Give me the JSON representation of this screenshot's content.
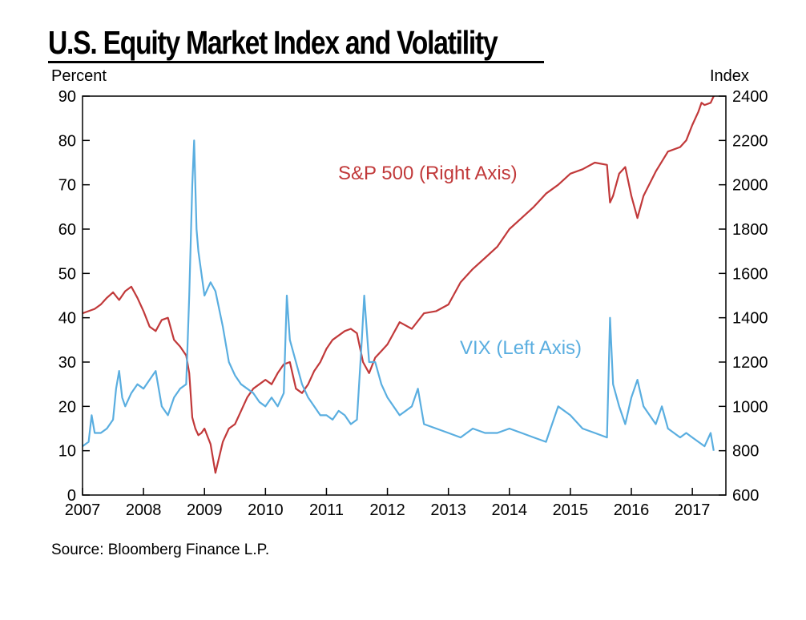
{
  "title": "U.S. Equity Market Index and Volatility",
  "left_unit": "Percent",
  "right_unit": "Index",
  "source": "Source: Bloomberg Finance L.P.",
  "colors": {
    "sp500": "#c1393a",
    "vix": "#5aaee0"
  },
  "chart_data": {
    "type": "line",
    "title": "U.S. Equity Market Index and Volatility",
    "x_tick_labels": [
      "2007",
      "2008",
      "2009",
      "2010",
      "2011",
      "2012",
      "2013",
      "2014",
      "2015",
      "2016",
      "2017"
    ],
    "xlim": [
      2007,
      2017.55
    ],
    "y_left": {
      "label": "Percent",
      "range": [
        0,
        90
      ],
      "ticks": [
        0,
        10,
        20,
        30,
        40,
        50,
        60,
        70,
        80,
        90
      ]
    },
    "y_right": {
      "label": "Index",
      "range": [
        600,
        2400
      ],
      "ticks": [
        600,
        800,
        1000,
        1200,
        1400,
        1600,
        1800,
        2000,
        2200,
        2400
      ]
    },
    "annotations": [
      "S&P 500 (Right Axis)",
      "VIX (Left Axis)"
    ],
    "legend": "none",
    "grid": false,
    "series": [
      {
        "name": "S&P 500 (Right Axis)",
        "axis": "right",
        "x": [
          2007.0,
          2007.1,
          2007.2,
          2007.3,
          2007.4,
          2007.5,
          2007.6,
          2007.7,
          2007.8,
          2007.9,
          2008.0,
          2008.1,
          2008.2,
          2008.3,
          2008.4,
          2008.5,
          2008.6,
          2008.7,
          2008.75,
          2008.8,
          2008.85,
          2008.9,
          2008.95,
          2009.0,
          2009.1,
          2009.18,
          2009.3,
          2009.4,
          2009.5,
          2009.6,
          2009.7,
          2009.8,
          2009.9,
          2010.0,
          2010.1,
          2010.2,
          2010.3,
          2010.4,
          2010.5,
          2010.6,
          2010.7,
          2010.8,
          2010.9,
          2011.0,
          2011.1,
          2011.2,
          2011.3,
          2011.4,
          2011.5,
          2011.6,
          2011.7,
          2011.8,
          2011.9,
          2012.0,
          2012.2,
          2012.4,
          2012.6,
          2012.8,
          2013.0,
          2013.2,
          2013.4,
          2013.6,
          2013.8,
          2014.0,
          2014.2,
          2014.4,
          2014.6,
          2014.8,
          2015.0,
          2015.2,
          2015.4,
          2015.6,
          2015.65,
          2015.7,
          2015.8,
          2015.9,
          2016.0,
          2016.1,
          2016.2,
          2016.4,
          2016.6,
          2016.8,
          2016.9,
          2017.0,
          2017.1,
          2017.15,
          2017.2,
          2017.3,
          2017.35
        ],
        "values": [
          1420,
          1430,
          1440,
          1460,
          1490,
          1515,
          1480,
          1520,
          1540,
          1490,
          1430,
          1360,
          1340,
          1390,
          1400,
          1300,
          1270,
          1230,
          1150,
          950,
          900,
          870,
          880,
          900,
          830,
          700,
          840,
          900,
          920,
          980,
          1040,
          1080,
          1100,
          1120,
          1100,
          1150,
          1190,
          1200,
          1080,
          1060,
          1100,
          1160,
          1200,
          1260,
          1300,
          1320,
          1340,
          1350,
          1330,
          1200,
          1150,
          1220,
          1250,
          1280,
          1380,
          1350,
          1420,
          1430,
          1460,
          1560,
          1620,
          1670,
          1720,
          1800,
          1850,
          1900,
          1960,
          2000,
          2050,
          2070,
          2100,
          2090,
          1920,
          1950,
          2050,
          2080,
          1950,
          1850,
          1950,
          2060,
          2150,
          2170,
          2200,
          2270,
          2330,
          2370,
          2360,
          2370,
          2400
        ]
      },
      {
        "name": "VIX (Left Axis)",
        "axis": "left",
        "x": [
          2007.0,
          2007.1,
          2007.15,
          2007.2,
          2007.3,
          2007.4,
          2007.5,
          2007.55,
          2007.6,
          2007.65,
          2007.7,
          2007.8,
          2007.9,
          2008.0,
          2008.1,
          2008.2,
          2008.3,
          2008.4,
          2008.5,
          2008.6,
          2008.7,
          2008.75,
          2008.8,
          2008.83,
          2008.87,
          2008.9,
          2009.0,
          2009.1,
          2009.18,
          2009.3,
          2009.4,
          2009.5,
          2009.6,
          2009.7,
          2009.8,
          2009.9,
          2010.0,
          2010.1,
          2010.2,
          2010.3,
          2010.35,
          2010.4,
          2010.5,
          2010.6,
          2010.7,
          2010.8,
          2010.9,
          2011.0,
          2011.1,
          2011.2,
          2011.3,
          2011.4,
          2011.5,
          2011.58,
          2011.62,
          2011.7,
          2011.8,
          2011.9,
          2012.0,
          2012.2,
          2012.4,
          2012.5,
          2012.6,
          2012.8,
          2013.0,
          2013.2,
          2013.4,
          2013.6,
          2013.8,
          2014.0,
          2014.2,
          2014.4,
          2014.6,
          2014.8,
          2015.0,
          2015.2,
          2015.4,
          2015.6,
          2015.65,
          2015.7,
          2015.8,
          2015.9,
          2016.0,
          2016.1,
          2016.2,
          2016.4,
          2016.5,
          2016.6,
          2016.8,
          2016.9,
          2017.0,
          2017.2,
          2017.3,
          2017.35
        ],
        "values": [
          11,
          12,
          18,
          14,
          14,
          15,
          17,
          24,
          28,
          22,
          20,
          23,
          25,
          24,
          26,
          28,
          20,
          18,
          22,
          24,
          25,
          45,
          70,
          80,
          60,
          55,
          45,
          48,
          46,
          38,
          30,
          27,
          25,
          24,
          23,
          21,
          20,
          22,
          20,
          23,
          45,
          35,
          30,
          25,
          22,
          20,
          18,
          18,
          17,
          19,
          18,
          16,
          17,
          35,
          45,
          30,
          30,
          25,
          22,
          18,
          20,
          24,
          16,
          15,
          14,
          13,
          15,
          14,
          14,
          15,
          14,
          13,
          12,
          20,
          18,
          15,
          14,
          13,
          40,
          25,
          20,
          16,
          22,
          26,
          20,
          16,
          20,
          15,
          13,
          14,
          13,
          11,
          14,
          10
        ]
      }
    ]
  }
}
